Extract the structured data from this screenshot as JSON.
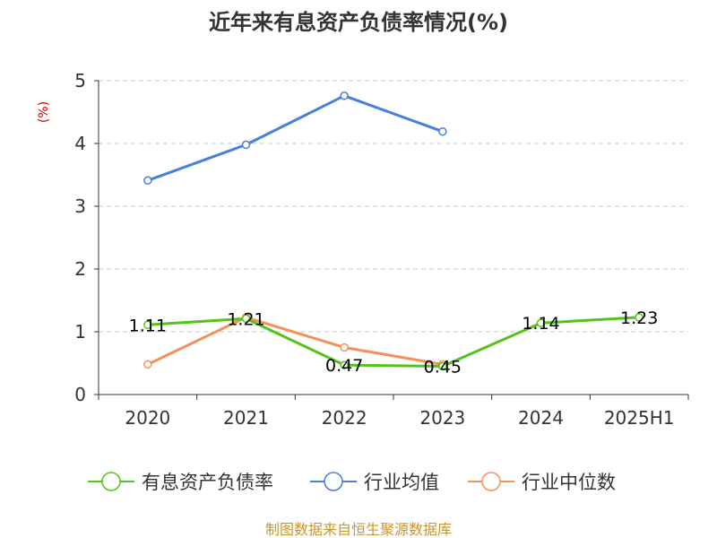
{
  "chart_data": {
    "type": "line",
    "title": "近年来有息资产负债率情况(%)",
    "ylabel": "(%)",
    "xlabel": "",
    "categories": [
      "2020",
      "2021",
      "2022",
      "2023",
      "2024",
      "2025H1"
    ],
    "ylim": [
      0,
      5
    ],
    "yticks": [
      0,
      1,
      2,
      3,
      4,
      5
    ],
    "grid": "horizontal-dashed",
    "legend_position": "bottom",
    "series": [
      {
        "name": "有息资产负债率",
        "color": "#52c41a",
        "values": [
          1.11,
          1.21,
          0.47,
          0.45,
          1.14,
          1.23
        ],
        "labels": [
          "1.11",
          "1.21",
          "0.47",
          "0.45",
          "1.14",
          "1.23"
        ]
      },
      {
        "name": "行业均值",
        "color": "#4a7fdb",
        "values": [
          3.41,
          3.98,
          4.76,
          4.19,
          null,
          null
        ]
      },
      {
        "name": "行业中位数",
        "color": "#f5905a",
        "values": [
          0.48,
          1.23,
          0.75,
          0.48,
          null,
          null
        ]
      }
    ]
  },
  "source": "制图数据来自恒生聚源数据库"
}
